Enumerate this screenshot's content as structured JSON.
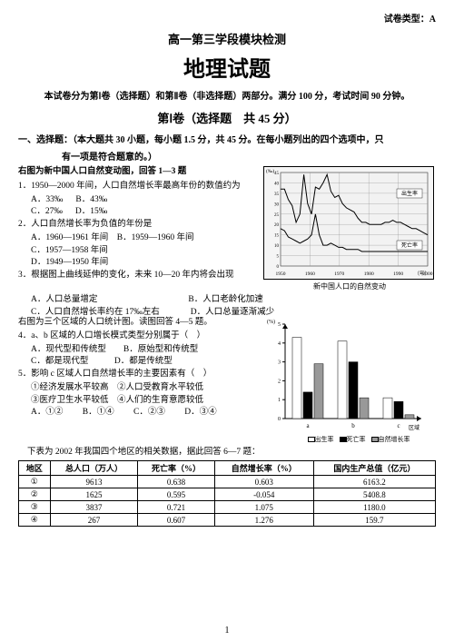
{
  "top_right": "试卷类型：A",
  "header1": "高一第三学段模块检测",
  "header2": "地理试题",
  "subheader": "本试卷分为第Ⅰ卷（选择题）和第Ⅱ卷（非选择题）两部分。满分 100 分，考试时间 90 分钟。",
  "section1_title": "第Ⅰ卷（选择题　共 45 分）",
  "part1_title": "一、选择题：（本大题共 30 小题，每小题 1.5 分，共 45 分。在每小题列出的四个选项中，只",
  "part1_title2": "有一项是符合题意的。）",
  "stem1": "右图为新中国人口自然变动图，回答 1—3 题",
  "q1": "1．1950—2000 年间，人口自然增长率最高年份的数值约为",
  "q1a": "A．33‰",
  "q1b": "B．43‰",
  "q1c": "C．27‰",
  "q1d": "D．15‰",
  "q2": "2．人口自然增长率为负值的年份是",
  "q2a": "A．1960—1961 年间",
  "q2b": "B．1959—1960 年间",
  "q2c": "C．1957—1958 年间",
  "q2d": "D．1949—1950 年间",
  "q3": "3．根据图上曲线延伸的变化，未来 10—20 年内将会出现",
  "q3a": "A．人口总量增定",
  "q3b": "B．人口老龄化加速",
  "q3c": "C．人口自然增长率约在 17‰左右",
  "q3d": "D．人口总量逐渐减少",
  "stem2": "右图为三个区域的人口统计图。读图回答 4—5 题。",
  "q4": "4．a、b 区域的人口增长模式类型分别属于（　）",
  "q4a": "A．现代型和传统型",
  "q4b": "B．原始型和传统型",
  "q4c": "C．都是现代型",
  "q4d": "D．都是传统型",
  "q5": "5．影响 c 区域人口自然增长率的主要因素有（　）",
  "q5_1": "①经济发展水平较高",
  "q5_2": "②人口受教育水平较低",
  "q5_3": "③医疗卫生水平较低",
  "q5_4": "④人们的生育意愿较低",
  "q5a": "A．①②",
  "q5b": "B．①④",
  "q5c": "C．②③",
  "q5d": "D．③④",
  "stem3": "下表为 2002 年我国四个地区的相关数据，据此回答 6—7 题：",
  "table": {
    "headers": [
      "地区",
      "总人口（万人）",
      "死亡率（%）",
      "自然增长率（%）",
      "国内生产总值（亿元）"
    ],
    "rows": [
      [
        "①",
        "9613",
        "0.638",
        "0.603",
        "6163.2"
      ],
      [
        "②",
        "1625",
        "0.595",
        "-0.054",
        "5408.8"
      ],
      [
        "③",
        "3837",
        "0.721",
        "1.075",
        "1180.0"
      ],
      [
        "④",
        "267",
        "0.607",
        "1.276",
        "159.7"
      ]
    ]
  },
  "chart1": {
    "caption": "新中国人口的自然变动",
    "ylabel": "(‰)",
    "yticks": [
      45,
      40,
      35,
      30,
      25,
      20,
      15,
      10,
      5,
      0
    ],
    "xticks": [
      1950,
      1960,
      1970,
      1980,
      1990,
      2000
    ],
    "xlabel": "（年）",
    "label_birth": "出生率",
    "label_death": "死亡率",
    "birth": [
      37,
      37,
      32,
      29,
      21,
      25,
      44,
      30,
      25,
      38,
      37,
      40,
      44,
      36,
      33,
      34,
      30,
      28,
      27,
      26,
      23,
      21,
      21,
      20,
      20,
      20,
      20,
      21,
      21,
      22,
      21,
      21,
      20,
      19,
      18,
      18,
      17,
      16,
      15
    ],
    "death": [
      18,
      17,
      14,
      13,
      12,
      11,
      12,
      13,
      15,
      25,
      15,
      10,
      10,
      11,
      10,
      9,
      9,
      8,
      8,
      8,
      8,
      7,
      7,
      7,
      7,
      7,
      7,
      7,
      7,
      7,
      7,
      7,
      7,
      7,
      7,
      7,
      7,
      7,
      7
    ],
    "line_color": "#000000",
    "bg_color": "#f2f2f2",
    "grid_color": "#888888"
  },
  "chart2": {
    "ylabel": "(%)",
    "yticks": [
      5,
      4,
      3,
      2,
      1,
      0
    ],
    "categories": [
      "a",
      "b",
      "c"
    ],
    "legend": [
      "出生率",
      "死亡率",
      "自然增长率"
    ],
    "colors": [
      "#ffffff",
      "#000000",
      "#999999"
    ],
    "values": {
      "a": [
        4.3,
        1.4,
        2.9
      ],
      "b": [
        4.1,
        3.0,
        1.1
      ],
      "c": [
        1.1,
        0.9,
        0.2
      ]
    },
    "xlabel": "区域"
  },
  "page_num": "1"
}
